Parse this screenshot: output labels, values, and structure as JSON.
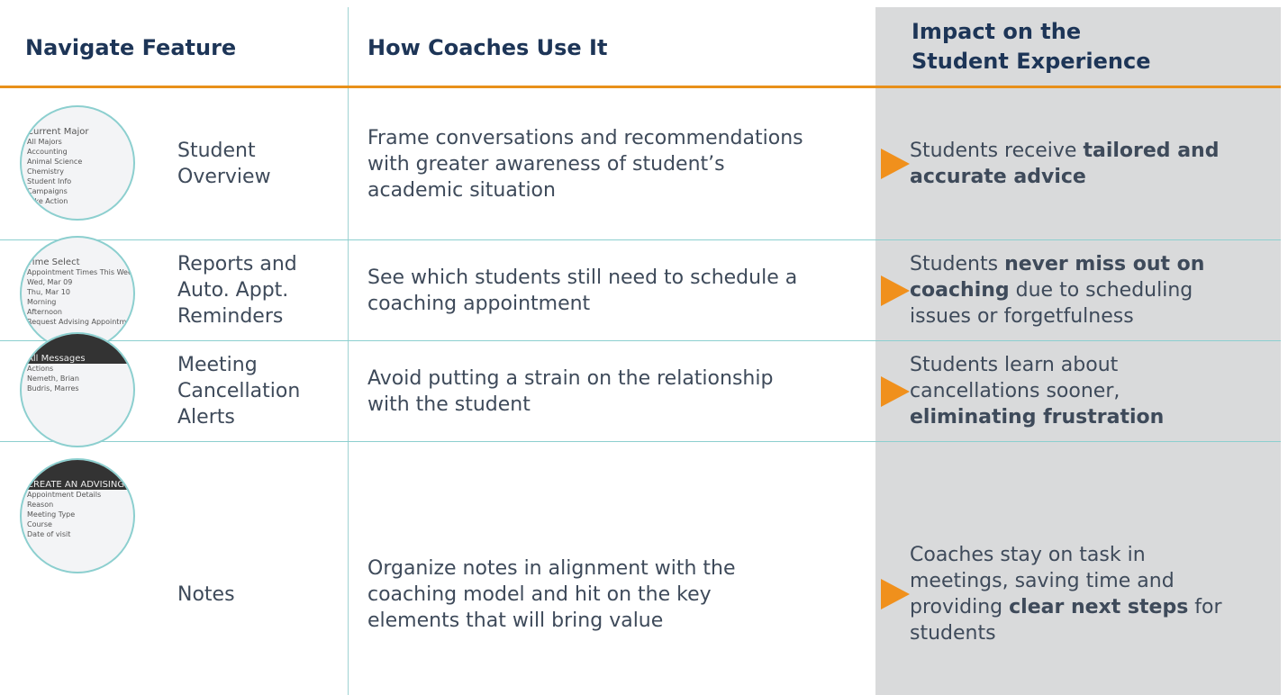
{
  "header": {
    "columns": [
      "Navigate Feature",
      "How Coaches Use It",
      "Impact on the Student Experience"
    ]
  },
  "rows": [
    {
      "feature": "Student Overview",
      "usage": "Frame conversations and recommendations with greater awareness of student’s academic situation",
      "impact": [
        {
          "text": "Students receive "
        },
        {
          "text": "tailored and accurate advice",
          "bold": true
        }
      ],
      "thumbnail": [
        "Current Major",
        "All Majors",
        "Accounting",
        "Animal Science",
        "Chemistry",
        "Student Info",
        "Campaigns",
        "Take Action"
      ]
    },
    {
      "feature": "Reports and Auto. Appt. Reminders",
      "usage": "See which students still need to schedule a coaching appointment",
      "impact": [
        {
          "text": "Students "
        },
        {
          "text": "never miss out on coaching",
          "bold": true
        },
        {
          "text": " due to scheduling issues or forgetfulness"
        }
      ],
      "thumbnail": [
        "Time Select",
        "Appointment Times This Week",
        "Wed, Mar 09",
        "Thu, Mar 10",
        "Morning",
        "Afternoon",
        "Request Advising Appointment"
      ]
    },
    {
      "feature": "Meeting Cancellation Alerts",
      "usage": "Avoid putting a strain on the relationship with the student",
      "impact": [
        {
          "text": "Students learn about cancellations sooner, "
        },
        {
          "text": "eliminating frustration",
          "bold": true
        }
      ],
      "thumbnail": [
        "All Messages",
        "Actions",
        "Nemeth, Brian",
        "Budris, Marres"
      ]
    },
    {
      "feature": "Notes",
      "usage": "Organize notes in alignment with the coaching model and hit on the key elements that will bring value",
      "impact": [
        {
          "text": "Coaches stay on task in meetings, saving time and providing "
        },
        {
          "text": "clear next steps",
          "bold": true
        },
        {
          "text": " for students"
        }
      ],
      "thumbnail": [
        "CREATE AN ADVISING REPORT",
        "Appointment Details",
        "Reason",
        "Meeting Type",
        "Course",
        "Date of visit"
      ]
    }
  ]
}
